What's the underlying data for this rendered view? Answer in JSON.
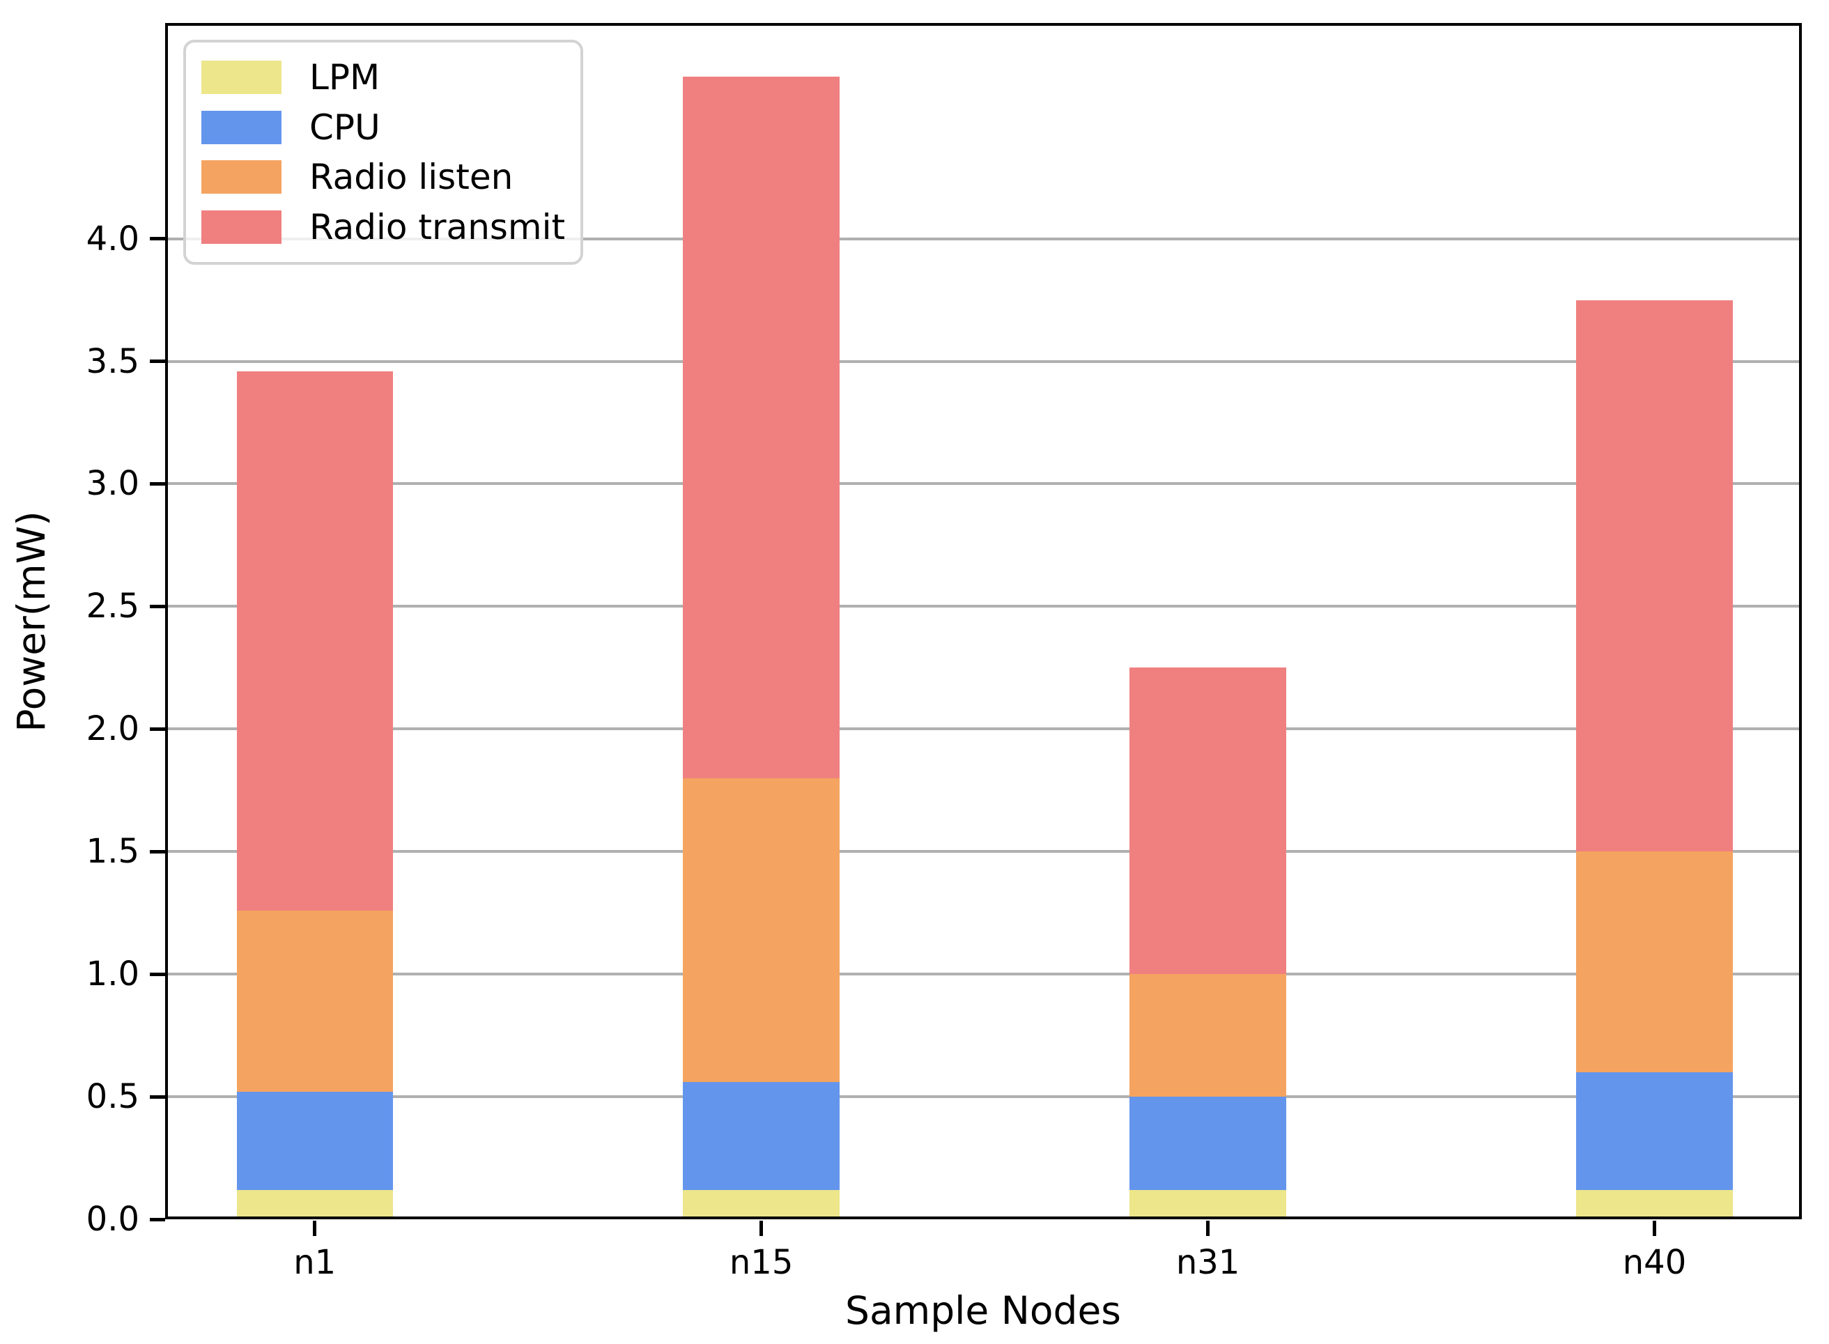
{
  "figure": {
    "title": "",
    "background": "#ffffff"
  },
  "axes": {
    "ylabel": "Power(mW)",
    "xlabel": "Sample Nodes",
    "spine_color": "#000000",
    "grid_color": "#b0b0b0"
  },
  "legend": {
    "position": "upper-left",
    "items": [
      {
        "label": "LPM",
        "color": "#ede68b"
      },
      {
        "label": "CPU",
        "color": "#6495ed"
      },
      {
        "label": "Radio listen",
        "color": "#f4a460"
      },
      {
        "label": "Radio transmit",
        "color": "#f08080"
      }
    ]
  },
  "chart_data": {
    "type": "bar",
    "stacked": true,
    "title": "",
    "xlabel": "Sample Nodes",
    "ylabel": "Power(mW)",
    "categories": [
      "n1",
      "n15",
      "n31",
      "n40"
    ],
    "series": [
      {
        "name": "LPM",
        "color": "#ede68b",
        "values": [
          0.12,
          0.12,
          0.12,
          0.12
        ]
      },
      {
        "name": "CPU",
        "color": "#6495ed",
        "values": [
          0.4,
          0.44,
          0.38,
          0.48
        ]
      },
      {
        "name": "Radio listen",
        "color": "#f4a460",
        "values": [
          0.74,
          1.24,
          0.5,
          0.9
        ]
      },
      {
        "name": "Radio transmit",
        "color": "#f08080",
        "values": [
          2.2,
          2.86,
          1.25,
          2.25
        ]
      }
    ],
    "totals": [
      3.46,
      4.66,
      2.25,
      3.75
    ],
    "cumulative_tops": {
      "n1": [
        0.12,
        0.52,
        1.26,
        3.46
      ],
      "n15": [
        0.12,
        0.56,
        1.8,
        4.66
      ],
      "n31": [
        0.12,
        0.5,
        1.0,
        2.25
      ],
      "n40": [
        0.12,
        0.6,
        1.5,
        3.75
      ]
    },
    "ylim": [
      0,
      4.88
    ],
    "xlim": [
      -0.335,
      3.33
    ],
    "bar_width": 0.35,
    "yticks": [
      0.0,
      0.5,
      1.0,
      1.5,
      2.0,
      2.5,
      3.0,
      3.5,
      4.0
    ],
    "grid": true,
    "legend_position": "upper left"
  }
}
